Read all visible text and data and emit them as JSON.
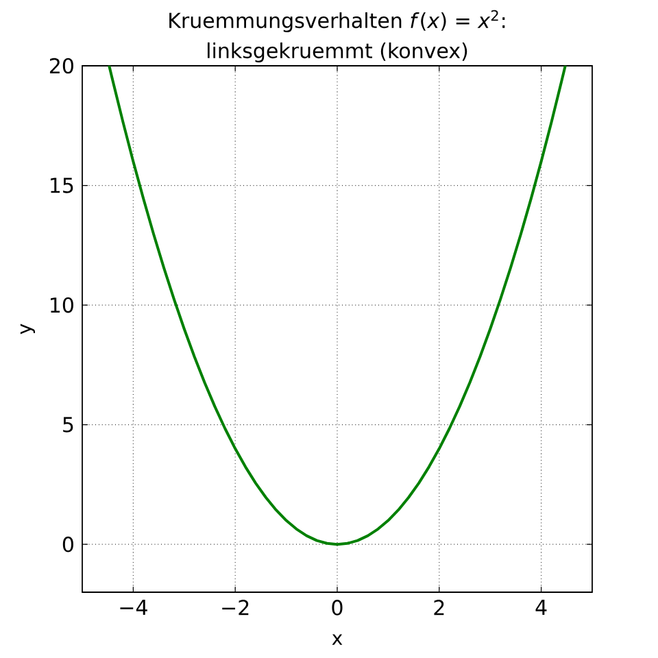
{
  "chart_data": {
    "type": "line",
    "title": "Kruemmungsverhalten *f*(*x*) = *x*$^{2}$: linksgekruemmt (konvex)",
    "xlabel": "x",
    "ylabel": "y",
    "x": [
      -4.47,
      -4.4,
      -4.2,
      -4,
      -3.8,
      -3.6,
      -3.4,
      -3.2,
      -3,
      -2.8,
      -2.6,
      -2.4,
      -2.2,
      -2,
      -1.8,
      -1.6,
      -1.4,
      -1.2,
      -1,
      -0.8,
      -0.6,
      -0.4,
      -0.2,
      0,
      0.2,
      0.4,
      0.6,
      0.8,
      1,
      1.2,
      1.4,
      1.6,
      1.8,
      2,
      2.2,
      2.4,
      2.6,
      2.8,
      3,
      3.2,
      3.4,
      3.6,
      3.8,
      4,
      4.2,
      4.4,
      4.47
    ],
    "values": [
      19.98,
      19.36,
      17.64,
      16,
      14.44,
      12.96,
      11.56,
      10.24,
      9,
      7.84,
      6.76,
      5.76,
      4.84,
      4,
      3.24,
      2.56,
      1.96,
      1.44,
      1,
      0.64,
      0.36,
      0.16,
      0.04,
      0,
      0.04,
      0.16,
      0.36,
      0.64,
      1,
      1.44,
      1.96,
      2.56,
      3.24,
      4,
      4.84,
      5.76,
      6.76,
      7.84,
      9,
      10.24,
      11.56,
      12.96,
      14.44,
      16,
      17.64,
      19.36,
      19.98
    ],
    "color": "#008000",
    "xlim": [
      -5,
      5
    ],
    "ylim": [
      -2,
      20
    ],
    "xticks": [
      {
        "value": -4,
        "label": "−4"
      },
      {
        "value": -2,
        "label": "−2"
      },
      0,
      2,
      4
    ],
    "yticks": [
      0,
      5,
      10,
      15,
      20
    ],
    "grid": true
  }
}
